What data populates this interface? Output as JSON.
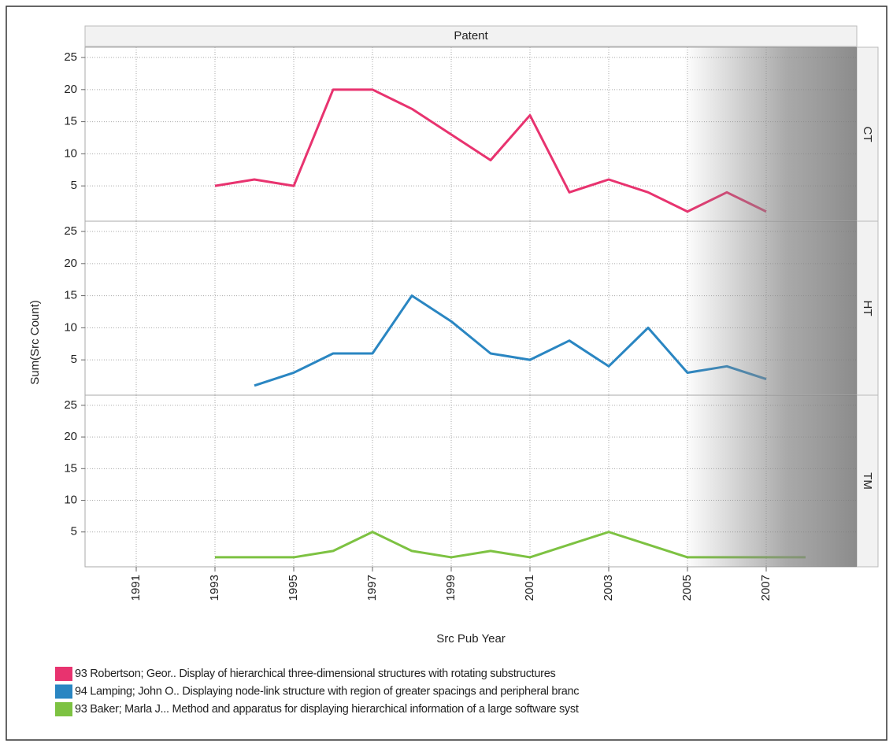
{
  "facet_header": "Patent",
  "y_label": "Sum(Src Count)",
  "x_label": "Src Pub Year",
  "chart_data": [
    {
      "type": "line",
      "panel": "CT",
      "grid": true,
      "xlim": [
        1989.7,
        2009.3
      ],
      "xticks": [
        1991,
        1993,
        1995,
        1997,
        1999,
        2001,
        2003,
        2005,
        2007
      ],
      "ylim": [
        -0.5,
        26.6
      ],
      "yticks": [
        5,
        10,
        15,
        20,
        25
      ],
      "x": [
        1993,
        1994,
        1995,
        1996,
        1997,
        1998,
        1999,
        2000,
        2001,
        2002,
        2003,
        2004,
        2005,
        2006,
        2007
      ],
      "series": [
        {
          "name": "93 Robertson; Geor.. Display of hierarchical three-dimensional structures with rotating substructures",
          "color": "#e8336f",
          "values": [
            5,
            6,
            5,
            20,
            20,
            17,
            13,
            9,
            16,
            4,
            6,
            4,
            1,
            4,
            1
          ]
        }
      ]
    },
    {
      "type": "line",
      "panel": "HT",
      "grid": true,
      "xlim": [
        1989.7,
        2009.3
      ],
      "xticks": [
        1991,
        1993,
        1995,
        1997,
        1999,
        2001,
        2003,
        2005,
        2007
      ],
      "ylim": [
        -0.5,
        26.6
      ],
      "yticks": [
        5,
        10,
        15,
        20,
        25
      ],
      "x": [
        1994,
        1995,
        1996,
        1997,
        1998,
        1999,
        2000,
        2001,
        2002,
        2003,
        2004,
        2005,
        2006,
        2007
      ],
      "series": [
        {
          "name": "94 Lamping; John O.. Displaying node-link structure with region of greater spacings and peripheral branc",
          "color": "#2a86c2",
          "values": [
            1,
            3,
            6,
            6,
            15,
            11,
            6,
            5,
            8,
            4,
            10,
            3,
            4,
            2
          ]
        }
      ]
    },
    {
      "type": "line",
      "panel": "TM",
      "grid": true,
      "xlim": [
        1989.7,
        2009.3
      ],
      "xticks": [
        1991,
        1993,
        1995,
        1997,
        1999,
        2001,
        2003,
        2005,
        2007
      ],
      "ylim": [
        -0.5,
        26.6
      ],
      "yticks": [
        5,
        10,
        15,
        20,
        25
      ],
      "x": [
        1993,
        1994,
        1995,
        1996,
        1997,
        1998,
        1999,
        2000,
        2001,
        2002,
        2003,
        2004,
        2005,
        2006,
        2007,
        2008
      ],
      "series": [
        {
          "name": "93 Baker; Marla J... Method and apparatus for displaying hierarchical information of a large software syst",
          "color": "#7dc242",
          "values": [
            1,
            1,
            1,
            2,
            5,
            2,
            1,
            2,
            1,
            3,
            5,
            3,
            1,
            1,
            1,
            1
          ]
        }
      ]
    }
  ]
}
